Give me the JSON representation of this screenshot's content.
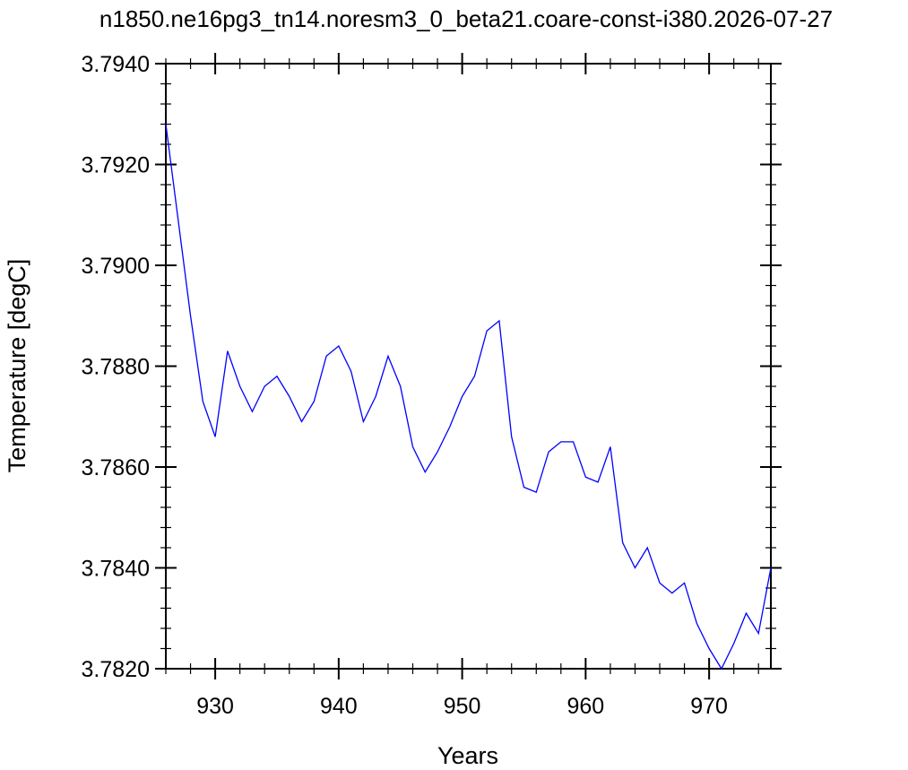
{
  "chart_data": {
    "type": "line",
    "title": "n1850.ne16pg3_tn14.noresm3_0_beta21.coare-const-i380.2026-07-27",
    "xlabel": "Years",
    "ylabel": "Temperature [degC]",
    "xlim": [
      926,
      975
    ],
    "ylim": [
      3.782,
      3.794
    ],
    "xticks": [
      930,
      940,
      950,
      960,
      970
    ],
    "xtick_labels": [
      "930",
      "940",
      "950",
      "960",
      "970"
    ],
    "yticks": [
      3.782,
      3.784,
      3.786,
      3.788,
      3.79,
      3.792,
      3.794
    ],
    "ytick_labels": [
      "3.7820",
      "3.7840",
      "3.7860",
      "3.7880",
      "3.7900",
      "3.7920",
      "3.7940"
    ],
    "grid": false,
    "series": [
      {
        "color": "#0000ff",
        "x": [
          926,
          927,
          928,
          929,
          930,
          931,
          932,
          933,
          934,
          935,
          936,
          937,
          938,
          939,
          940,
          941,
          942,
          943,
          944,
          945,
          946,
          947,
          948,
          949,
          950,
          951,
          952,
          953,
          954,
          955,
          956,
          957,
          958,
          959,
          960,
          961,
          962,
          963,
          964,
          965,
          966,
          967,
          968,
          969,
          970,
          971,
          972,
          973,
          974,
          975
        ],
        "y": [
          3.7928,
          3.7909,
          3.789,
          3.7873,
          3.7866,
          3.7883,
          3.7876,
          3.7871,
          3.7876,
          3.7878,
          3.7874,
          3.7869,
          3.7873,
          3.7882,
          3.7884,
          3.7879,
          3.7869,
          3.7874,
          3.7882,
          3.7876,
          3.7864,
          3.7859,
          3.7863,
          3.7868,
          3.7874,
          3.7878,
          3.7887,
          3.7889,
          3.7866,
          3.7856,
          3.7855,
          3.7863,
          3.7865,
          3.7865,
          3.7858,
          3.7857,
          3.7864,
          3.7845,
          3.784,
          3.7844,
          3.7837,
          3.7835,
          3.7837,
          3.7829,
          3.7824,
          3.782,
          3.7825,
          3.7831,
          3.7827,
          3.784
        ]
      }
    ]
  }
}
